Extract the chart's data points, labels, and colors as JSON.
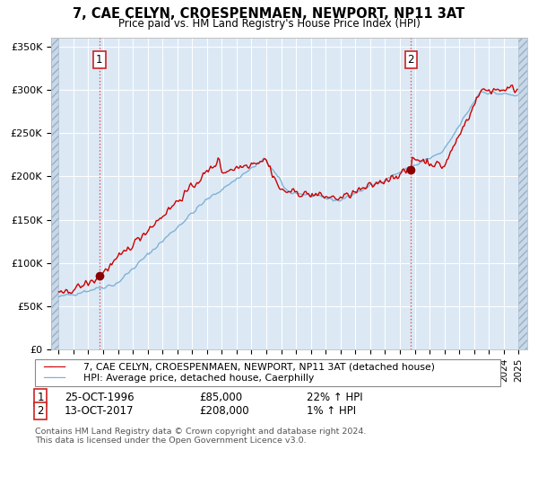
{
  "title": "7, CAE CELYN, CROESPENMAEN, NEWPORT, NP11 3AT",
  "subtitle": "Price paid vs. HM Land Registry's House Price Index (HPI)",
  "background_color": "#dce9f5",
  "grid_color": "#ffffff",
  "red_line_color": "#cc0000",
  "blue_line_color": "#7bafd4",
  "marker_color": "#8b0000",
  "dashed_line_color": "#e05050",
  "purchase1_date": "25-OCT-1996",
  "purchase1_price": 85000,
  "purchase1_pct": "22%",
  "purchase2_date": "13-OCT-2017",
  "purchase2_price": 208000,
  "purchase2_pct": "1%",
  "legend_line1": "7, CAE CELYN, CROESPENMAEN, NEWPORT, NP11 3AT (detached house)",
  "legend_line2": "HPI: Average price, detached house, Caerphilly",
  "footnote": "Contains HM Land Registry data © Crown copyright and database right 2024.\nThis data is licensed under the Open Government Licence v3.0.",
  "ylim_max": 360000,
  "ylim_min": 0
}
